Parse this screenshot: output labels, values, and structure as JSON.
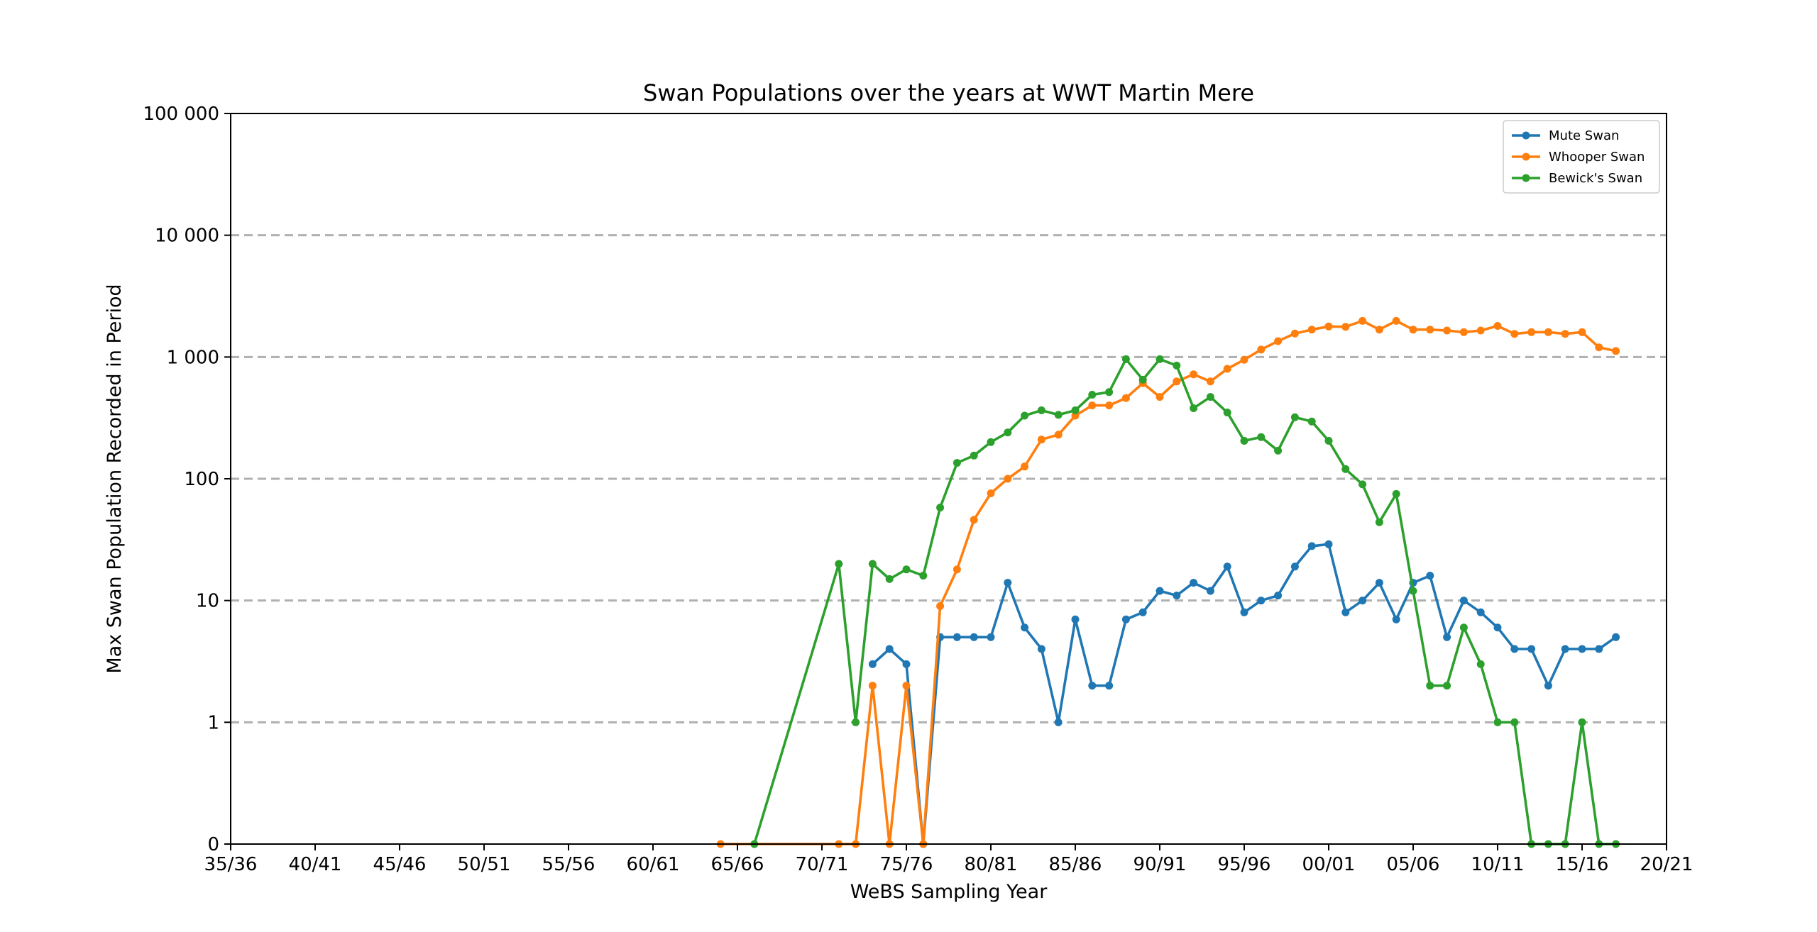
{
  "chart_data": {
    "type": "line",
    "title": "Swan Populations over the years at WWT Martin Mere",
    "xlabel": "WeBS Sampling Year",
    "ylabel": "Max Swan Population Recorded in Period",
    "x_tick_labels": [
      "35/36",
      "40/41",
      "45/46",
      "50/51",
      "55/56",
      "60/61",
      "65/66",
      "70/71",
      "75/76",
      "80/81",
      "85/86",
      "90/91",
      "95/96",
      "00/01",
      "05/06",
      "10/11",
      "15/16",
      "20/21"
    ],
    "y_tick_labels": [
      "0",
      "1",
      "10",
      "100",
      "1 000",
      "10 000",
      "100 000"
    ],
    "y_scale": "symlog",
    "ylim": [
      0,
      100000
    ],
    "xlim": [
      "35/36",
      "20/21"
    ],
    "grid": "horizontal dashed",
    "legend_position": "top-right",
    "series": [
      {
        "name": "Mute Swan",
        "color": "#1f77b4",
        "points": [
          [
            "73/74",
            3
          ],
          [
            "74/75",
            4
          ],
          [
            "75/76",
            3
          ],
          [
            "76/77",
            0
          ],
          [
            "77/78",
            5
          ],
          [
            "78/79",
            5
          ],
          [
            "79/80",
            5
          ],
          [
            "80/81",
            5
          ],
          [
            "81/82",
            14
          ],
          [
            "82/83",
            6
          ],
          [
            "83/84",
            4
          ],
          [
            "84/85",
            1
          ],
          [
            "85/86",
            7
          ],
          [
            "86/87",
            2
          ],
          [
            "87/88",
            2
          ],
          [
            "88/89",
            7
          ],
          [
            "89/90",
            8
          ],
          [
            "90/91",
            12
          ],
          [
            "91/92",
            11
          ],
          [
            "92/93",
            14
          ],
          [
            "93/94",
            12
          ],
          [
            "94/95",
            19
          ],
          [
            "95/96",
            8
          ],
          [
            "96/97",
            10
          ],
          [
            "97/98",
            11
          ],
          [
            "98/99",
            19
          ],
          [
            "99/00",
            28
          ],
          [
            "00/01",
            29
          ],
          [
            "01/02",
            8
          ],
          [
            "02/03",
            10
          ],
          [
            "03/04",
            14
          ],
          [
            "04/05",
            7
          ],
          [
            "05/06",
            14
          ],
          [
            "06/07",
            16
          ],
          [
            "07/08",
            5
          ],
          [
            "08/09",
            10
          ],
          [
            "09/10",
            8
          ],
          [
            "10/11",
            6
          ],
          [
            "11/12",
            4
          ],
          [
            "12/13",
            4
          ],
          [
            "13/14",
            2
          ],
          [
            "14/15",
            4
          ],
          [
            "15/16",
            4
          ],
          [
            "16/17",
            4
          ],
          [
            "17/18",
            5
          ]
        ]
      },
      {
        "name": "Whooper Swan",
        "color": "#ff7f0e",
        "points": [
          [
            "64/65",
            0
          ],
          [
            "71/72",
            0
          ],
          [
            "72/73",
            0
          ],
          [
            "73/74",
            2
          ],
          [
            "74/75",
            0
          ],
          [
            "75/76",
            2
          ],
          [
            "76/77",
            0
          ],
          [
            "77/78",
            9
          ],
          [
            "78/79",
            18
          ],
          [
            "79/80",
            46
          ],
          [
            "80/81",
            76
          ],
          [
            "81/82",
            100
          ],
          [
            "82/83",
            126
          ],
          [
            "83/84",
            210
          ],
          [
            "84/85",
            230
          ],
          [
            "85/86",
            330
          ],
          [
            "86/87",
            400
          ],
          [
            "87/88",
            400
          ],
          [
            "88/89",
            460
          ],
          [
            "89/90",
            610
          ],
          [
            "90/91",
            470
          ],
          [
            "91/92",
            630
          ],
          [
            "92/93",
            720
          ],
          [
            "93/94",
            630
          ],
          [
            "94/95",
            800
          ],
          [
            "95/96",
            950
          ],
          [
            "96/97",
            1150
          ],
          [
            "97/98",
            1350
          ],
          [
            "98/99",
            1560
          ],
          [
            "99/00",
            1680
          ],
          [
            "00/01",
            1780
          ],
          [
            "01/02",
            1770
          ],
          [
            "02/03",
            1980
          ],
          [
            "03/04",
            1680
          ],
          [
            "04/05",
            1980
          ],
          [
            "05/06",
            1680
          ],
          [
            "06/07",
            1680
          ],
          [
            "07/08",
            1650
          ],
          [
            "08/09",
            1600
          ],
          [
            "09/10",
            1650
          ],
          [
            "10/11",
            1800
          ],
          [
            "11/12",
            1550
          ],
          [
            "12/13",
            1600
          ],
          [
            "13/14",
            1600
          ],
          [
            "14/15",
            1550
          ],
          [
            "15/16",
            1600
          ],
          [
            "16/17",
            1200
          ],
          [
            "17/18",
            1120
          ]
        ]
      },
      {
        "name": "Bewick's Swan",
        "color": "#2ca02c",
        "points": [
          [
            "66/67",
            0
          ],
          [
            "71/72",
            20
          ],
          [
            "72/73",
            1
          ],
          [
            "73/74",
            20
          ],
          [
            "74/75",
            15
          ],
          [
            "75/76",
            18
          ],
          [
            "76/77",
            16
          ],
          [
            "77/78",
            58
          ],
          [
            "78/79",
            135
          ],
          [
            "79/80",
            155
          ],
          [
            "80/81",
            200
          ],
          [
            "81/82",
            240
          ],
          [
            "82/83",
            330
          ],
          [
            "83/84",
            365
          ],
          [
            "84/85",
            335
          ],
          [
            "85/86",
            365
          ],
          [
            "86/87",
            490
          ],
          [
            "87/88",
            515
          ],
          [
            "88/89",
            960
          ],
          [
            "89/90",
            650
          ],
          [
            "90/91",
            960
          ],
          [
            "91/92",
            850
          ],
          [
            "92/93",
            380
          ],
          [
            "93/94",
            470
          ],
          [
            "94/95",
            350
          ],
          [
            "95/96",
            205
          ],
          [
            "96/97",
            220
          ],
          [
            "97/98",
            170
          ],
          [
            "98/99",
            320
          ],
          [
            "99/00",
            295
          ],
          [
            "00/01",
            205
          ],
          [
            "01/02",
            120
          ],
          [
            "02/03",
            90
          ],
          [
            "03/04",
            44
          ],
          [
            "04/05",
            75
          ],
          [
            "05/06",
            12
          ],
          [
            "06/07",
            2
          ],
          [
            "07/08",
            2
          ],
          [
            "08/09",
            6
          ],
          [
            "09/10",
            3
          ],
          [
            "10/11",
            1
          ],
          [
            "11/12",
            1
          ],
          [
            "12/13",
            0
          ],
          [
            "13/14",
            0
          ],
          [
            "14/15",
            0
          ],
          [
            "15/16",
            1
          ],
          [
            "16/17",
            0
          ],
          [
            "17/18",
            0
          ]
        ]
      }
    ]
  }
}
